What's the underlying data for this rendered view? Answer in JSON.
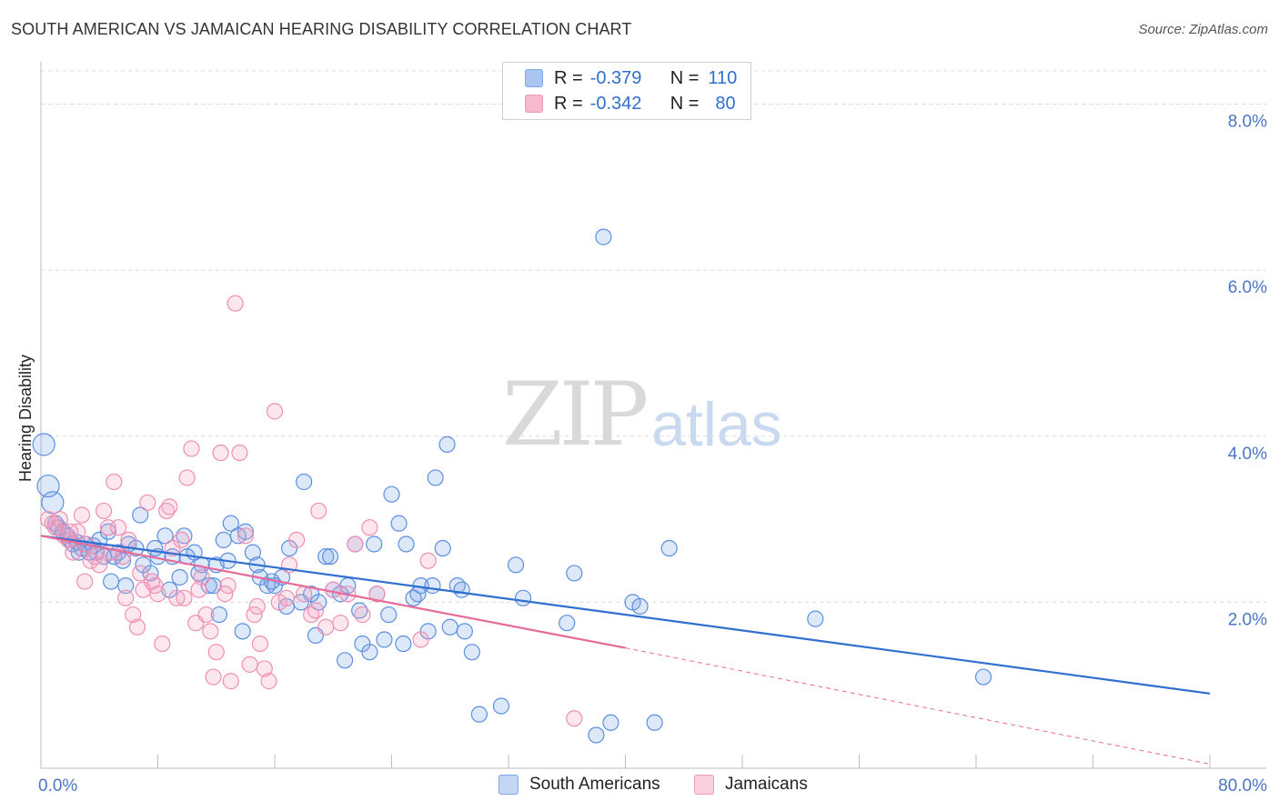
{
  "title": "SOUTH AMERICAN VS JAMAICAN HEARING DISABILITY CORRELATION CHART",
  "source": "Source: ZipAtlas.com",
  "watermark": {
    "zip": "ZIP",
    "atlas": "atlas"
  },
  "legend": {
    "rows": [
      {
        "r_label": "R =",
        "r_value": "-0.379",
        "n_label": "N =",
        "n_value": "110",
        "color": "#aac6f0"
      },
      {
        "r_label": "R =",
        "r_value": "-0.342",
        "n_label": "N =",
        "n_value": "80",
        "color": "#f7b9cd"
      }
    ]
  },
  "bottom_legend": [
    "South Americans",
    "Jamaicans"
  ],
  "chart_data": {
    "type": "scatter",
    "title": "SOUTH AMERICAN VS JAMAICAN HEARING DISABILITY CORRELATION CHART",
    "xlabel": "",
    "ylabel": "Hearing Disability",
    "xlim": [
      0,
      80
    ],
    "ylim": [
      0,
      8.4
    ],
    "x_tick_labels": [
      "0.0%",
      "80.0%"
    ],
    "y_ticks": [
      2,
      4,
      6,
      8
    ],
    "y_tick_labels": [
      "2.0%",
      "4.0%",
      "6.0%",
      "8.0%"
    ],
    "grid": true,
    "legend_position": "top-center",
    "colors": {
      "south_americans": "#5b8fe0",
      "jamaicans": "#f08fb0",
      "sa_line": "#2f6fd0",
      "jm_line": "#e86a98"
    },
    "series": [
      {
        "name": "South Americans",
        "trend": {
          "x0": 0,
          "y0": 2.8,
          "x1": 80,
          "y1": 0.9
        },
        "points": [
          [
            0.2,
            3.9
          ],
          [
            0.5,
            3.4
          ],
          [
            0.8,
            3.2
          ],
          [
            1.2,
            2.9
          ],
          [
            1.5,
            2.85
          ],
          [
            1.8,
            2.8
          ],
          [
            2.0,
            2.75
          ],
          [
            2.2,
            2.7
          ],
          [
            2.5,
            2.72
          ],
          [
            2.8,
            2.65
          ],
          [
            3.0,
            2.7
          ],
          [
            3.3,
            2.6
          ],
          [
            3.6,
            2.68
          ],
          [
            4.0,
            2.75
          ],
          [
            4.3,
            2.55
          ],
          [
            4.6,
            2.85
          ],
          [
            5.0,
            2.55
          ],
          [
            5.3,
            2.6
          ],
          [
            5.6,
            2.5
          ],
          [
            6.0,
            2.7
          ],
          [
            6.5,
            2.65
          ],
          [
            7.0,
            2.45
          ],
          [
            7.5,
            2.35
          ],
          [
            8.0,
            2.55
          ],
          [
            8.5,
            2.8
          ],
          [
            9.0,
            2.55
          ],
          [
            9.5,
            2.3
          ],
          [
            10.0,
            2.55
          ],
          [
            10.5,
            2.6
          ],
          [
            11.0,
            2.45
          ],
          [
            11.5,
            2.2
          ],
          [
            12.0,
            2.45
          ],
          [
            12.5,
            2.75
          ],
          [
            13.0,
            2.95
          ],
          [
            13.5,
            2.8
          ],
          [
            14.0,
            2.85
          ],
          [
            14.5,
            2.6
          ],
          [
            15.0,
            2.3
          ],
          [
            15.5,
            2.2
          ],
          [
            16.0,
            2.2
          ],
          [
            16.5,
            2.3
          ],
          [
            17.0,
            2.65
          ],
          [
            18.0,
            3.45
          ],
          [
            18.5,
            2.1
          ],
          [
            19.0,
            2.0
          ],
          [
            19.5,
            2.55
          ],
          [
            20.0,
            2.15
          ],
          [
            20.5,
            2.1
          ],
          [
            21.0,
            2.2
          ],
          [
            21.5,
            2.7
          ],
          [
            22.0,
            1.5
          ],
          [
            22.5,
            1.4
          ],
          [
            23.0,
            2.1
          ],
          [
            23.5,
            1.55
          ],
          [
            24.0,
            3.3
          ],
          [
            24.5,
            2.95
          ],
          [
            25.0,
            2.7
          ],
          [
            25.5,
            2.05
          ],
          [
            26.0,
            2.2
          ],
          [
            26.5,
            1.65
          ],
          [
            27.0,
            3.5
          ],
          [
            27.5,
            2.65
          ],
          [
            28.0,
            1.7
          ],
          [
            28.5,
            2.2
          ],
          [
            29.0,
            1.65
          ],
          [
            29.5,
            1.4
          ],
          [
            30.0,
            0.65
          ],
          [
            31.5,
            0.75
          ],
          [
            32.5,
            2.45
          ],
          [
            33.0,
            2.05
          ],
          [
            36.0,
            1.75
          ],
          [
            36.5,
            2.35
          ],
          [
            38.5,
            6.4
          ],
          [
            38.0,
            0.4
          ],
          [
            39.0,
            0.55
          ],
          [
            40.5,
            2.0
          ],
          [
            41.0,
            1.95
          ],
          [
            42.0,
            0.55
          ],
          [
            43.0,
            2.65
          ],
          [
            53.0,
            1.8
          ],
          [
            64.5,
            1.1
          ],
          [
            27.8,
            3.9
          ],
          [
            1.0,
            2.95
          ],
          [
            3.8,
            2.6
          ],
          [
            6.8,
            3.05
          ],
          [
            9.8,
            2.8
          ],
          [
            12.2,
            1.85
          ],
          [
            14.8,
            2.45
          ],
          [
            17.8,
            2.0
          ],
          [
            20.8,
            1.3
          ],
          [
            23.8,
            1.85
          ],
          [
            26.8,
            2.2
          ],
          [
            2.6,
            2.6
          ],
          [
            5.8,
            2.2
          ],
          [
            8.8,
            2.15
          ],
          [
            11.8,
            2.2
          ],
          [
            13.8,
            1.65
          ],
          [
            16.8,
            1.95
          ],
          [
            18.8,
            1.6
          ],
          [
            22.8,
            2.7
          ],
          [
            25.8,
            2.1
          ],
          [
            4.8,
            2.25
          ],
          [
            7.8,
            2.65
          ],
          [
            10.8,
            2.35
          ],
          [
            12.8,
            2.5
          ],
          [
            15.8,
            2.25
          ],
          [
            19.8,
            2.55
          ],
          [
            21.8,
            1.9
          ],
          [
            24.8,
            1.5
          ],
          [
            28.8,
            2.15
          ]
        ]
      },
      {
        "name": "Jamaicans",
        "trend": {
          "x0": 0,
          "y0": 2.8,
          "x1": 40,
          "y1": 1.45,
          "dash_x1": 80,
          "dash_y1": 0.05
        },
        "points": [
          [
            0.5,
            3.0
          ],
          [
            0.8,
            2.95
          ],
          [
            1.0,
            2.9
          ],
          [
            1.3,
            3.0
          ],
          [
            1.6,
            2.8
          ],
          [
            1.9,
            2.75
          ],
          [
            2.2,
            2.6
          ],
          [
            2.5,
            2.85
          ],
          [
            2.8,
            3.05
          ],
          [
            3.1,
            2.7
          ],
          [
            3.4,
            2.5
          ],
          [
            3.7,
            2.55
          ],
          [
            4.0,
            2.45
          ],
          [
            4.3,
            3.1
          ],
          [
            4.6,
            2.9
          ],
          [
            5.0,
            3.45
          ],
          [
            5.3,
            2.9
          ],
          [
            5.6,
            2.55
          ],
          [
            6.0,
            2.75
          ],
          [
            6.3,
            1.85
          ],
          [
            6.6,
            1.7
          ],
          [
            7.0,
            2.15
          ],
          [
            7.3,
            3.2
          ],
          [
            7.6,
            2.25
          ],
          [
            8.0,
            2.1
          ],
          [
            8.3,
            1.5
          ],
          [
            8.6,
            3.1
          ],
          [
            9.0,
            2.65
          ],
          [
            9.3,
            2.05
          ],
          [
            9.6,
            2.75
          ],
          [
            10.0,
            3.5
          ],
          [
            10.3,
            3.85
          ],
          [
            10.6,
            1.75
          ],
          [
            11.0,
            2.3
          ],
          [
            11.3,
            1.85
          ],
          [
            11.6,
            1.65
          ],
          [
            12.0,
            1.4
          ],
          [
            12.3,
            3.8
          ],
          [
            12.6,
            2.1
          ],
          [
            13.0,
            1.05
          ],
          [
            13.3,
            5.6
          ],
          [
            13.6,
            3.8
          ],
          [
            14.0,
            2.8
          ],
          [
            14.3,
            1.25
          ],
          [
            14.6,
            1.85
          ],
          [
            15.0,
            1.5
          ],
          [
            15.3,
            1.2
          ],
          [
            15.6,
            1.05
          ],
          [
            16.0,
            4.3
          ],
          [
            16.3,
            2.0
          ],
          [
            17.0,
            2.45
          ],
          [
            17.5,
            2.75
          ],
          [
            18.0,
            2.1
          ],
          [
            18.5,
            1.85
          ],
          [
            19.0,
            3.1
          ],
          [
            19.5,
            1.7
          ],
          [
            20.0,
            2.15
          ],
          [
            20.5,
            1.75
          ],
          [
            21.0,
            2.1
          ],
          [
            21.5,
            2.7
          ],
          [
            22.0,
            1.85
          ],
          [
            22.5,
            2.9
          ],
          [
            23.0,
            2.1
          ],
          [
            26.0,
            1.55
          ],
          [
            26.5,
            2.5
          ],
          [
            36.5,
            0.6
          ],
          [
            6.8,
            2.35
          ],
          [
            5.8,
            2.05
          ],
          [
            7.8,
            2.2
          ],
          [
            9.8,
            2.05
          ],
          [
            11.8,
            1.1
          ],
          [
            2.0,
            2.85
          ],
          [
            3.0,
            2.25
          ],
          [
            4.8,
            2.6
          ],
          [
            8.8,
            3.15
          ],
          [
            10.8,
            2.15
          ],
          [
            12.8,
            2.2
          ],
          [
            14.8,
            1.95
          ],
          [
            16.8,
            2.05
          ],
          [
            18.8,
            1.9
          ]
        ]
      }
    ]
  }
}
